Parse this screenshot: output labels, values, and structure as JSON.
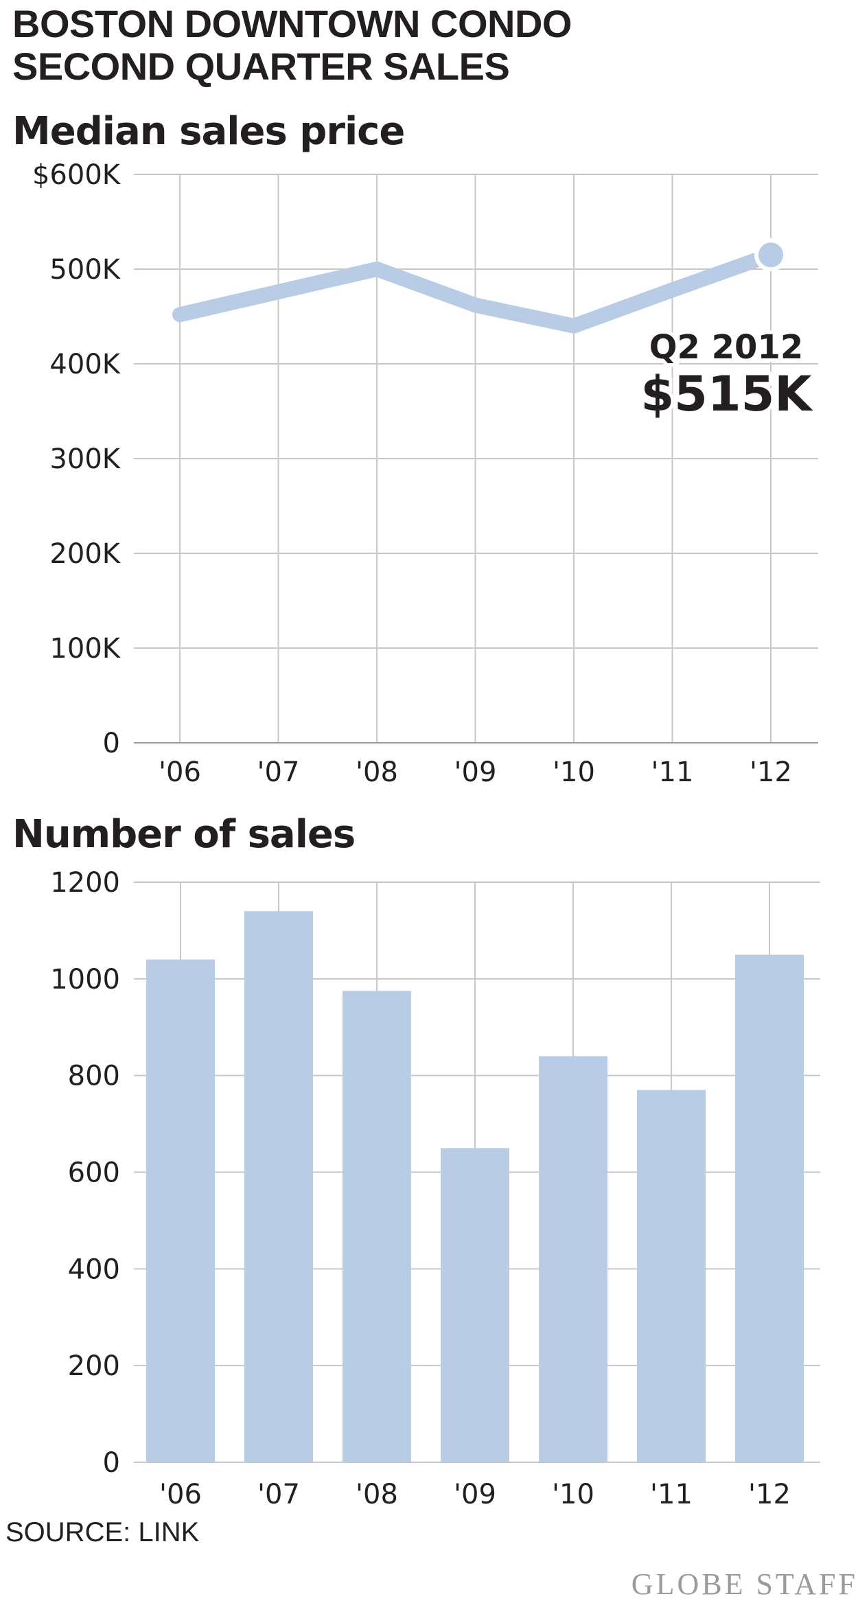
{
  "headline": {
    "line1": "BOSTON DOWNTOWN CONDO",
    "line2": "SECOND QUARTER SALES"
  },
  "footer": {
    "source": "SOURCE: LINK",
    "credit": "GLOBE STAFF"
  },
  "colors": {
    "series": "#b8cce6",
    "grid": "#c8c8c8",
    "text": "#231f20",
    "credit": "#9a9a9a"
  },
  "chart_data": [
    {
      "type": "line",
      "title": "Median sales price",
      "x": [
        "'06",
        "'07",
        "'08",
        "'09",
        "'10",
        "'11",
        "'12"
      ],
      "values": [
        452,
        476,
        500,
        462,
        440,
        478,
        515
      ],
      "ylim": [
        0,
        600
      ],
      "yticks": [
        0,
        100,
        200,
        300,
        400,
        500,
        600
      ],
      "ytick_labels": [
        "0",
        "100K",
        "200K",
        "300K",
        "400K",
        "500K",
        "$600K"
      ],
      "grid": true,
      "annotation": {
        "label": "Q2 2012",
        "value": "$515K"
      }
    },
    {
      "type": "bar",
      "title": "Number of sales",
      "categories": [
        "'06",
        "'07",
        "'08",
        "'09",
        "'10",
        "'11",
        "'12"
      ],
      "values": [
        1040,
        1140,
        975,
        650,
        840,
        770,
        1050
      ],
      "ylim": [
        0,
        1200
      ],
      "yticks": [
        0,
        200,
        400,
        600,
        800,
        1000,
        1200
      ],
      "ytick_labels": [
        "0",
        "200",
        "400",
        "600",
        "800",
        "1000",
        "1200"
      ],
      "grid": true
    }
  ]
}
